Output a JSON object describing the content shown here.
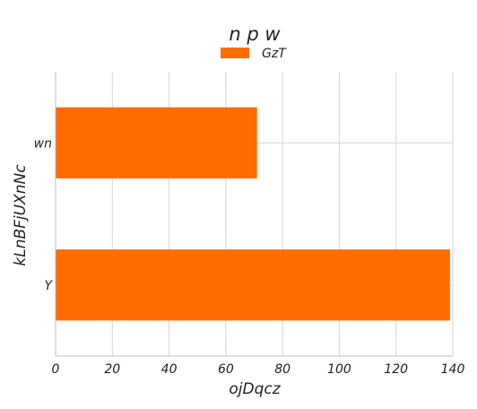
{
  "chart_data": {
    "type": "bar",
    "orientation": "horizontal",
    "title": "n p w",
    "xlabel": "ojDqcz",
    "ylabel": "kLnBFjUXnNc",
    "categories": [
      "Y",
      "wn"
    ],
    "series": [
      {
        "name": "GzT",
        "values": [
          139,
          71
        ],
        "color": "#ff6c00"
      }
    ],
    "xlim": [
      0,
      140
    ],
    "xticks": [
      0,
      20,
      40,
      60,
      80,
      100,
      120,
      140
    ],
    "grid": true,
    "legend_position": "top-center"
  }
}
